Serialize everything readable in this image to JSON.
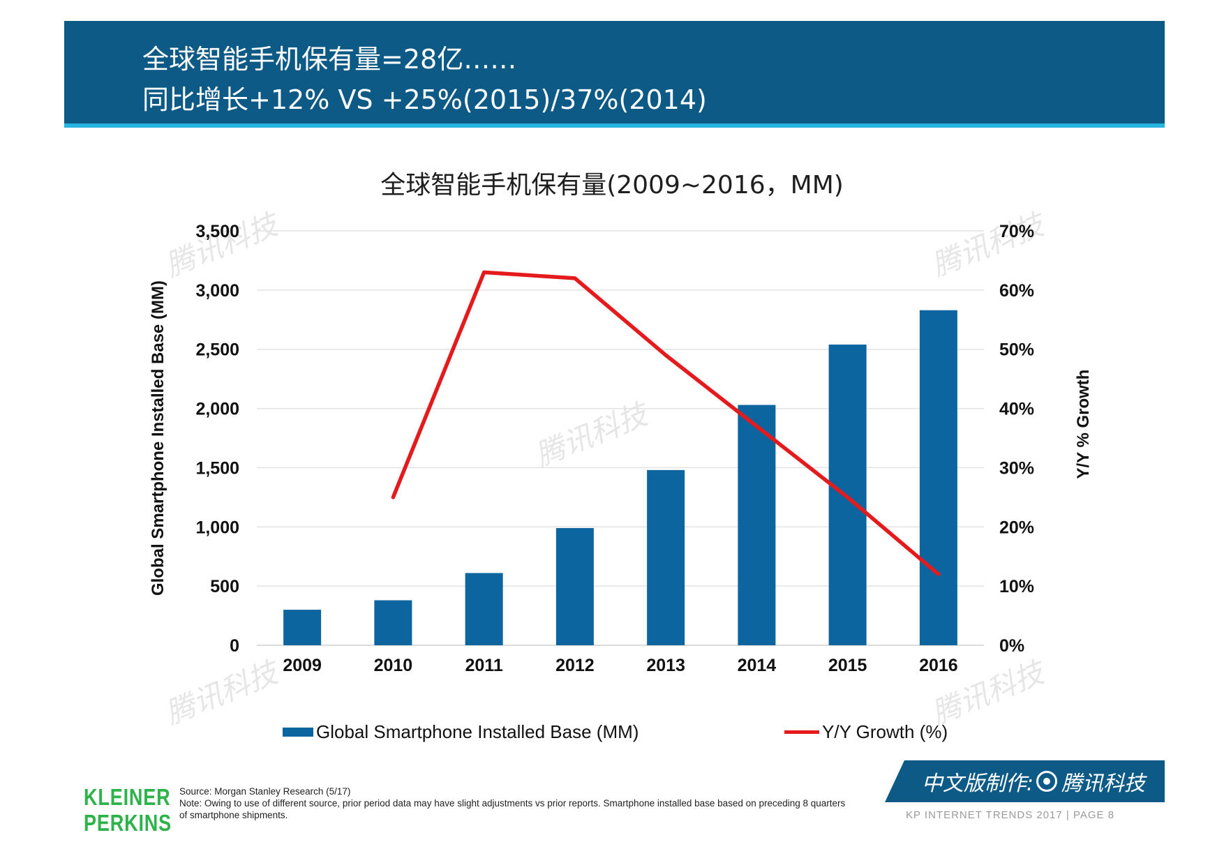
{
  "header": {
    "line1": "全球智能手机保有量=28亿……",
    "line2": "同比增长+12% VS +25%(2015)/37%(2014)"
  },
  "chart_data": {
    "type": "bar+line",
    "title": "全球智能手机保有量(2009~2016，MM)",
    "categories": [
      "2009",
      "2010",
      "2011",
      "2012",
      "2013",
      "2014",
      "2015",
      "2016"
    ],
    "series": [
      {
        "name": "Global Smartphone Installed Base (MM)",
        "type": "bar",
        "axis": "left",
        "color": "#0d65a0",
        "values": [
          300,
          380,
          610,
          990,
          1480,
          2030,
          2540,
          2830
        ]
      },
      {
        "name": "Y/Y Growth (%)",
        "type": "line",
        "axis": "right",
        "color": "#e41a1c",
        "values": [
          null,
          25,
          63,
          62,
          49,
          37,
          25,
          12
        ]
      }
    ],
    "ylabel": "Global Smartphone Installed Base (MM)",
    "ylabel_right": "Y/Y % Growth",
    "ylim": [
      0,
      3500
    ],
    "ylim_right": [
      0,
      70
    ],
    "yticks": [
      "0",
      "500",
      "1,000",
      "1,500",
      "2,000",
      "2,500",
      "3,000",
      "3,500"
    ],
    "yticks_right": [
      "0%",
      "10%",
      "20%",
      "30%",
      "40%",
      "50%",
      "60%",
      "70%"
    ],
    "grid": true,
    "legend": "bottom"
  },
  "legend": {
    "bar_label": "Global Smartphone Installed Base (MM)",
    "line_label": "Y/Y Growth (%)"
  },
  "footer": {
    "logo_line1": "KLEINER",
    "logo_line2": "PERKINS",
    "source": "Source: Morgan Stanley Research (5/17)",
    "note": "Note: Owing to use of different source, prior period data may have slight adjustments vs prior reports. Smartphone installed base based on preceding 8 quarters of smartphone shipments.",
    "badge_prefix": "中文版制作:",
    "badge_brand": "腾讯科技",
    "trends_text": "KP INTERNET TRENDS 2017  |  PAGE 8"
  },
  "watermark": "腾讯科技"
}
